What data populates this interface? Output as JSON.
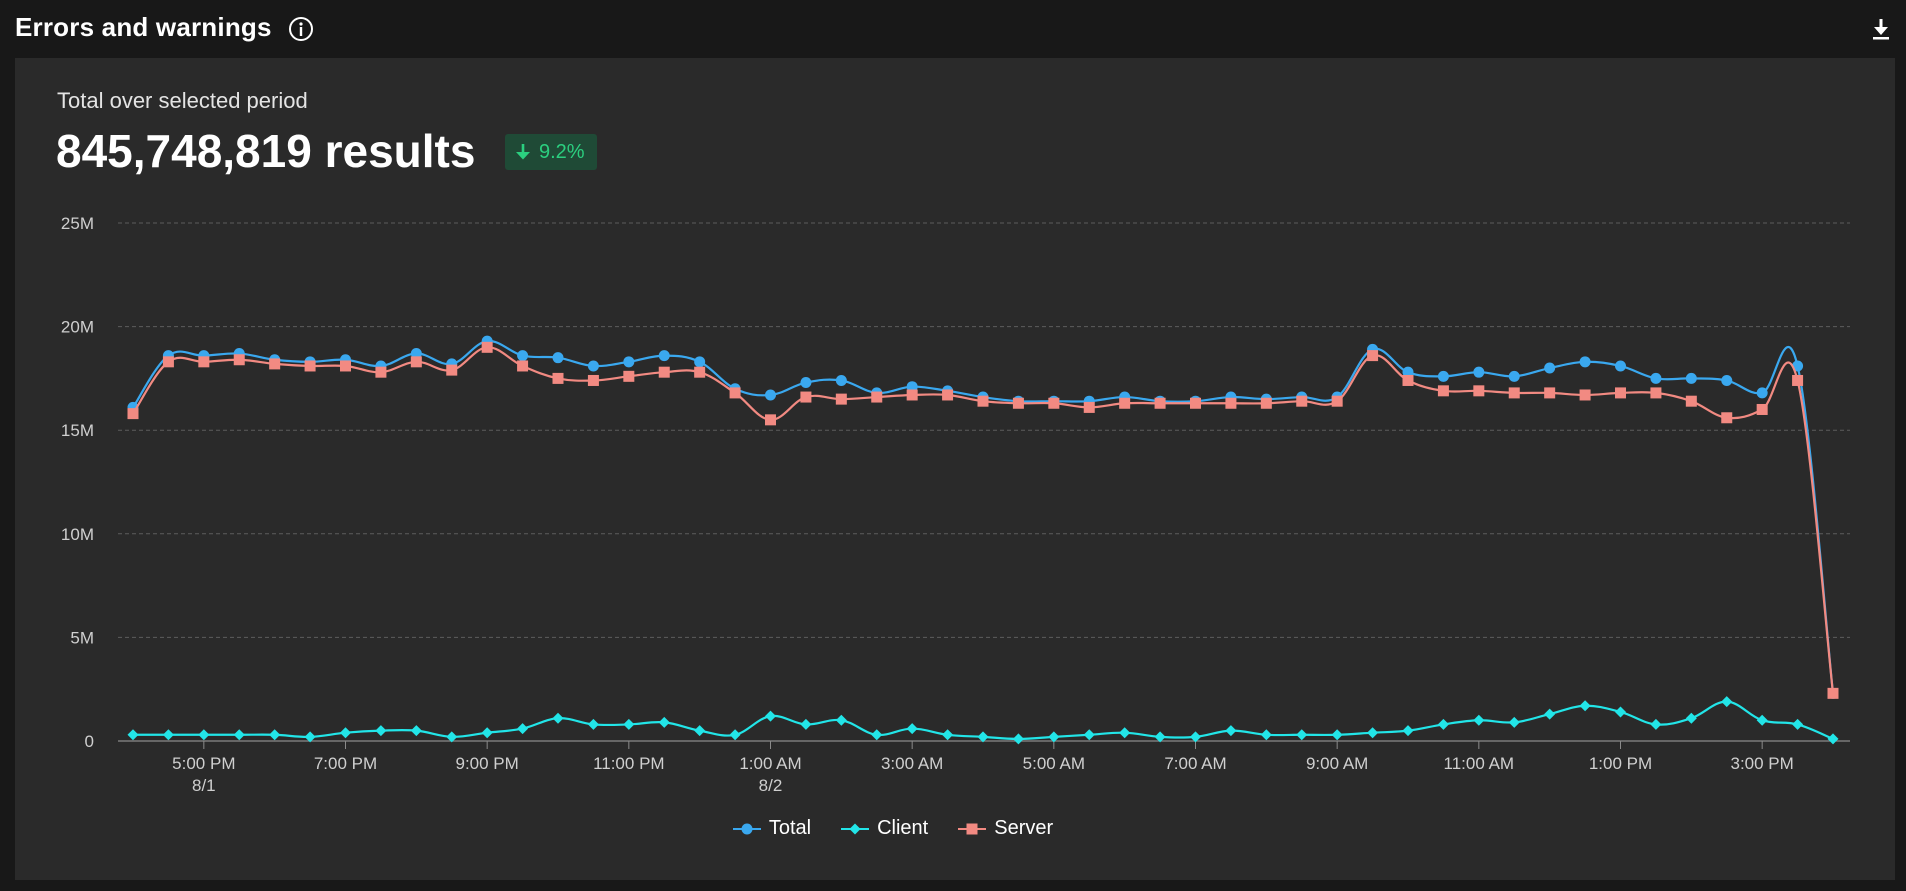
{
  "header": {
    "title": "Errors and warnings",
    "info_icon": "info-circle-icon",
    "download_icon": "download-icon"
  },
  "summary": {
    "label": "Total over selected period",
    "value": "845,748,819 results",
    "delta": "9.2%",
    "delta_direction": "down",
    "delta_color": "#2bcf7f"
  },
  "colors": {
    "total": "#3aa8ef",
    "client": "#22e5e8",
    "server": "#f28a82",
    "grid": "#5c5c5c",
    "axis_text": "#cfcfcf"
  },
  "chart_data": {
    "type": "line",
    "title": "",
    "xlabel": "",
    "ylabel": "",
    "ylim": [
      0,
      25000000
    ],
    "yticks": [
      "0",
      "5M",
      "10M",
      "15M",
      "20M",
      "25M"
    ],
    "xticks": [
      {
        "label": "5:00 PM",
        "sublabel": "8/1",
        "index": 2
      },
      {
        "label": "7:00 PM",
        "sublabel": "",
        "index": 6
      },
      {
        "label": "9:00 PM",
        "sublabel": "",
        "index": 10
      },
      {
        "label": "11:00 PM",
        "sublabel": "",
        "index": 14
      },
      {
        "label": "1:00 AM",
        "sublabel": "8/2",
        "index": 18
      },
      {
        "label": "3:00 AM",
        "sublabel": "",
        "index": 22
      },
      {
        "label": "5:00 AM",
        "sublabel": "",
        "index": 26
      },
      {
        "label": "7:00 AM",
        "sublabel": "",
        "index": 30
      },
      {
        "label": "9:00 AM",
        "sublabel": "",
        "index": 34
      },
      {
        "label": "11:00 AM",
        "sublabel": "",
        "index": 38
      },
      {
        "label": "1:00 PM",
        "sublabel": "",
        "index": 42
      },
      {
        "label": "3:00 PM",
        "sublabel": "",
        "index": 46
      }
    ],
    "grid": true,
    "legend_position": "bottom-center",
    "series": [
      {
        "name": "Total",
        "marker": "circle",
        "values": [
          16.1,
          18.6,
          18.6,
          18.7,
          18.4,
          18.3,
          18.4,
          18.1,
          18.7,
          18.2,
          19.3,
          18.6,
          18.5,
          18.1,
          18.3,
          18.6,
          18.3,
          17.0,
          16.7,
          17.3,
          17.4,
          16.8,
          17.1,
          16.9,
          16.6,
          16.4,
          16.4,
          16.4,
          16.6,
          16.4,
          16.4,
          16.6,
          16.5,
          16.6,
          16.6,
          18.9,
          17.8,
          17.6,
          17.8,
          17.6,
          18.0,
          18.3,
          18.1,
          17.5,
          17.5,
          17.4,
          16.8,
          18.1,
          2.3
        ]
      },
      {
        "name": "Client",
        "marker": "diamond",
        "values": [
          0.3,
          0.3,
          0.3,
          0.3,
          0.3,
          0.2,
          0.4,
          0.5,
          0.5,
          0.2,
          0.4,
          0.6,
          1.1,
          0.8,
          0.8,
          0.9,
          0.5,
          0.3,
          1.2,
          0.8,
          1.0,
          0.3,
          0.6,
          0.3,
          0.2,
          0.1,
          0.2,
          0.3,
          0.4,
          0.2,
          0.2,
          0.5,
          0.3,
          0.3,
          0.3,
          0.4,
          0.5,
          0.8,
          1.0,
          0.9,
          1.3,
          1.7,
          1.4,
          0.8,
          1.1,
          1.9,
          1.0,
          0.8,
          0.1
        ]
      },
      {
        "name": "Server",
        "marker": "square",
        "values": [
          15.8,
          18.3,
          18.3,
          18.4,
          18.2,
          18.1,
          18.1,
          17.8,
          18.3,
          17.9,
          19.0,
          18.1,
          17.5,
          17.4,
          17.6,
          17.8,
          17.8,
          16.8,
          15.5,
          16.6,
          16.5,
          16.6,
          16.7,
          16.7,
          16.4,
          16.3,
          16.3,
          16.1,
          16.3,
          16.3,
          16.3,
          16.3,
          16.3,
          16.4,
          16.4,
          18.6,
          17.4,
          16.9,
          16.9,
          16.8,
          16.8,
          16.7,
          16.8,
          16.8,
          16.4,
          15.6,
          16.0,
          17.4,
          2.3
        ]
      }
    ],
    "value_unit_multiplier": 1000000
  }
}
